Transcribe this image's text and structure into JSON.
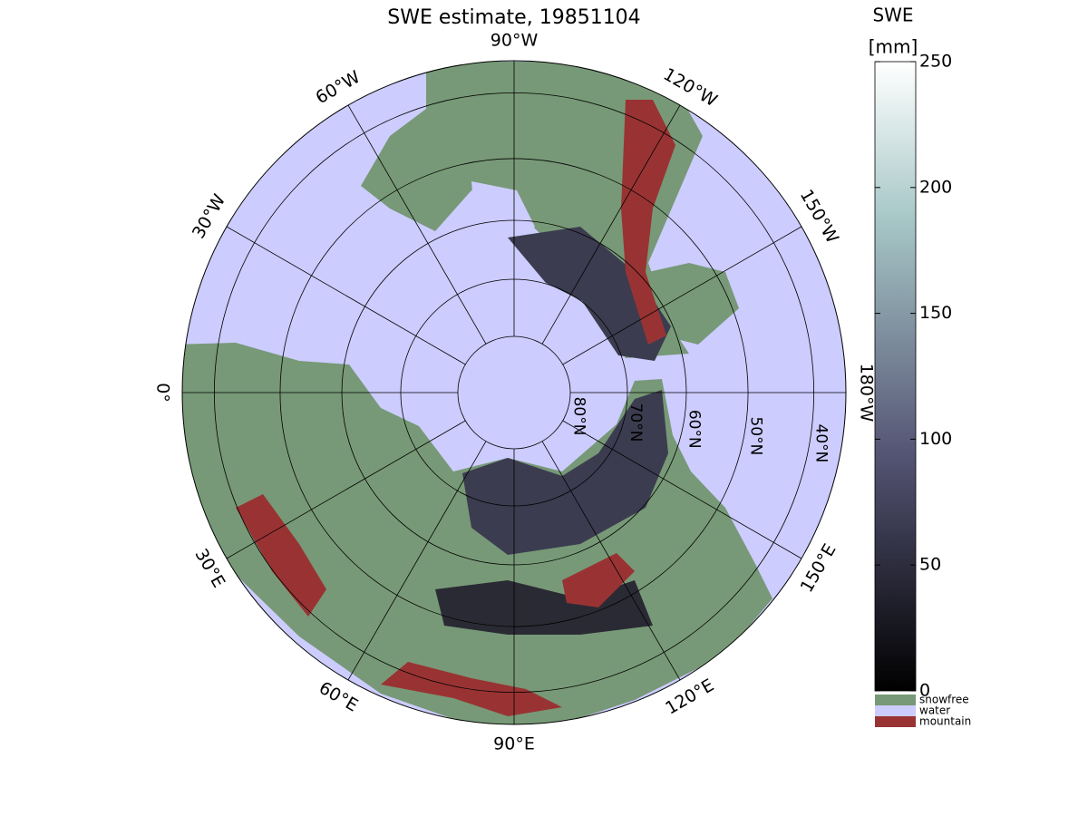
{
  "title": "SWE estimate, 19851104",
  "map": {
    "meridians": [
      {
        "value": -90,
        "label": "90°W"
      },
      {
        "value": -120,
        "label": "120°W"
      },
      {
        "value": -150,
        "label": "150°W"
      },
      {
        "value": 180,
        "label": "180°W"
      },
      {
        "value": 150,
        "label": "150°E"
      },
      {
        "value": 120,
        "label": "120°E"
      },
      {
        "value": 90,
        "label": "90°E"
      },
      {
        "value": 60,
        "label": "60°E"
      },
      {
        "value": 30,
        "label": "30°E"
      },
      {
        "value": 0,
        "label": "0°"
      },
      {
        "value": -30,
        "label": "30°W"
      },
      {
        "value": -60,
        "label": "60°W"
      }
    ],
    "parallels": [
      {
        "value": 80,
        "label": "80°N"
      },
      {
        "value": 70,
        "label": "70°N"
      },
      {
        "value": 60,
        "label": "60°N"
      },
      {
        "value": 50,
        "label": "50°N"
      },
      {
        "value": 40,
        "label": "40°N"
      }
    ]
  },
  "colorbar": {
    "title": "SWE",
    "unit": "[mm]",
    "range": [
      0,
      250
    ],
    "ticks": [
      0,
      50,
      100,
      150,
      200,
      250
    ]
  },
  "legend": [
    {
      "label": "snowfree",
      "color": "#779977"
    },
    {
      "label": "water",
      "color": "#ccccff"
    },
    {
      "label": "mountain",
      "color": "#993333"
    }
  ]
}
